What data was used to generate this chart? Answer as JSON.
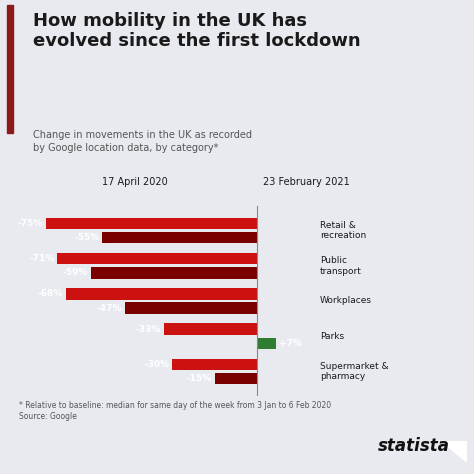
{
  "title": "How mobility in the UK has\nevolved since the first lockdown",
  "subtitle": "Change in movements in the UK as recorded\nby Google location data, by category*",
  "footnote": "* Relative to baseline: median for same day of the week from 3 Jan to 6 Feb 2020\nSource: Google",
  "legend_label1": "17 April 2020",
  "legend_label2": "23 February 2021",
  "categories": [
    "Retail &\nrecreation",
    "Public\ntransport",
    "Workplaces",
    "Parks",
    "Supermarket &\npharmacy"
  ],
  "values_april": [
    -75,
    -71,
    -68,
    -33,
    -30
  ],
  "values_feb": [
    -55,
    -59,
    -47,
    7,
    -15
  ],
  "labels_april": [
    "-75%",
    "-71%",
    "-68%",
    "-33%",
    "-30%"
  ],
  "labels_feb": [
    "-55%",
    "-59%",
    "-47%",
    "+7%",
    "-15%"
  ],
  "color_april": "#cc1111",
  "color_feb_neg": "#7a0000",
  "color_feb_pos": "#2e7d32",
  "color_title_bar": "#8b1a1a",
  "bg_color": "#e8eaf0",
  "text_color": "#1a1a1a",
  "subtitle_color": "#555555",
  "xlim_min": -88,
  "xlim_max": 20
}
